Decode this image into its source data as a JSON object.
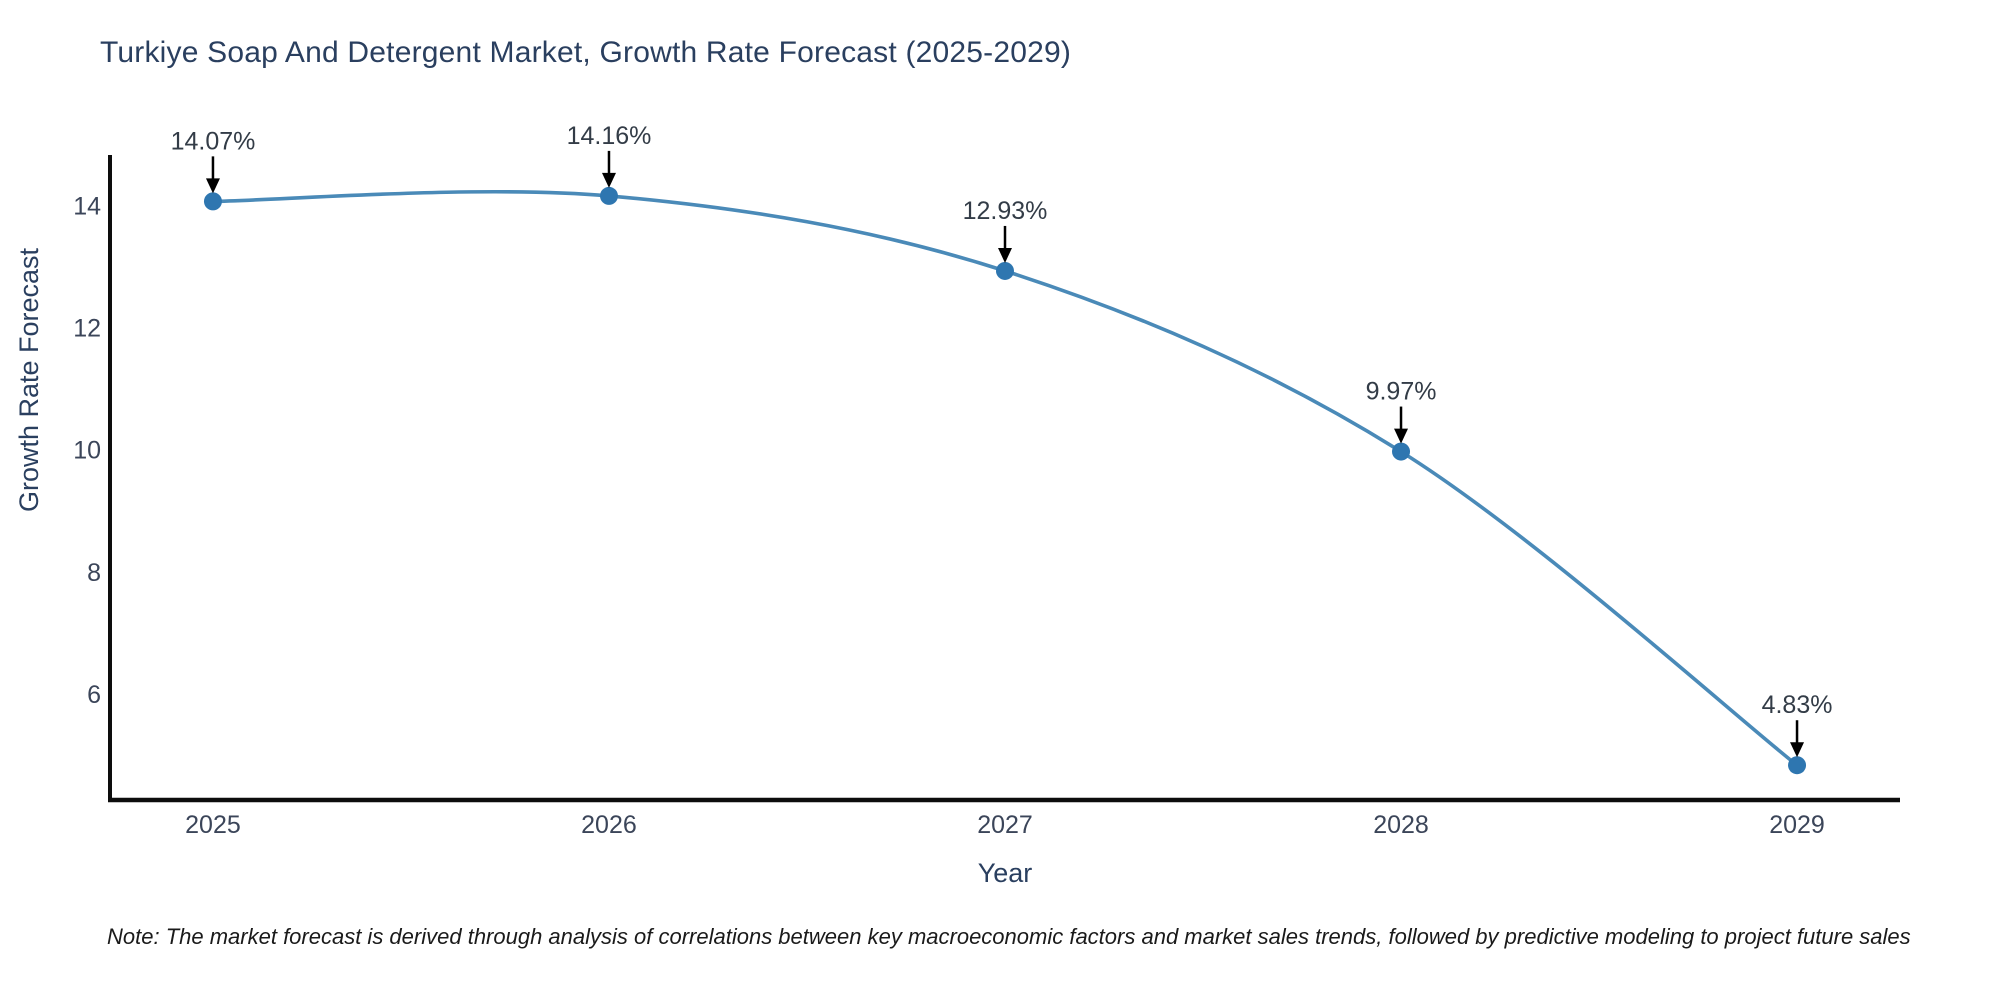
{
  "note": {
    "text": "Note: The market forecast is derived through analysis of correlations between key macroeconomic factors and market sales trends, followed by predictive modeling to project future sales"
  },
  "chart_data": {
    "type": "line",
    "title": "Turkiye Soap And Detergent Market, Growth Rate Forecast (2025-2029)",
    "xlabel": "Year",
    "ylabel": "Growth Rate Forecast",
    "x": [
      2025,
      2026,
      2027,
      2028,
      2029
    ],
    "series": [
      {
        "name": "Growth Rate Forecast",
        "values": [
          14.07,
          14.16,
          12.93,
          9.97,
          4.83
        ]
      }
    ],
    "point_labels": [
      "14.07%",
      "14.16%",
      "12.93%",
      "9.97%",
      "4.83%"
    ],
    "xticks": [
      2025,
      2026,
      2027,
      2028,
      2029
    ],
    "yticks": [
      6,
      8,
      10,
      12,
      14
    ],
    "xlim": [
      2024.74,
      2029.26
    ],
    "ylim": [
      4.26,
      14.83
    ],
    "grid": false,
    "legend": "none",
    "line_shape": "spline",
    "colors": {
      "line": "#4a8ab8",
      "marker": "#2e76b0",
      "axis_line": "#0d0d0d",
      "tick_label": "#3b4559",
      "annotation_text": "#333c47",
      "annotation_arrow": "#000000",
      "title": "#2a3f5f"
    }
  }
}
